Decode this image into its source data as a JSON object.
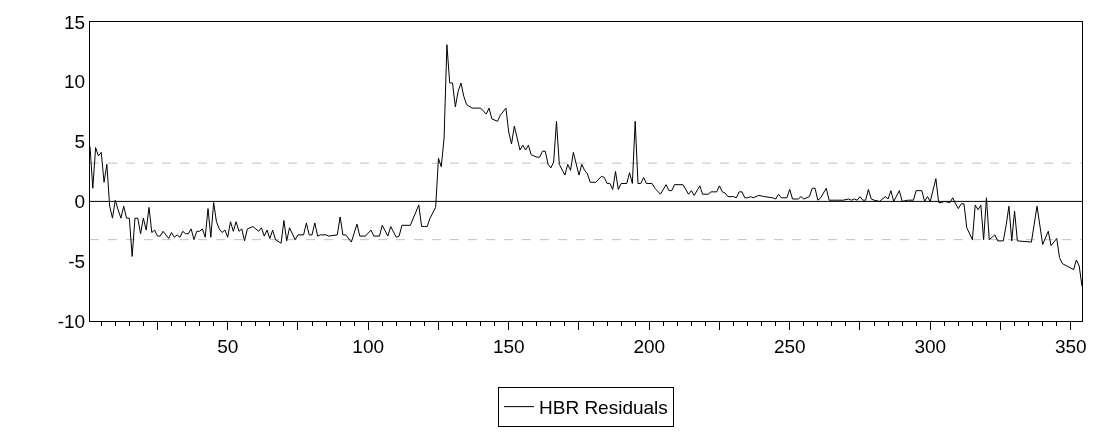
{
  "chart_data": {
    "type": "line",
    "xlim": [
      1,
      354
    ],
    "xticks": [
      {
        "value": 25,
        "label": null
      },
      50,
      {
        "value": 75,
        "label": null
      },
      100,
      {
        "value": 125,
        "label": null
      },
      150,
      {
        "value": 175,
        "label": null
      },
      200,
      {
        "value": 225,
        "label": null
      },
      250,
      {
        "value": 275,
        "label": null
      },
      300,
      {
        "value": 325,
        "label": null
      },
      350
    ],
    "ylim": [
      -10,
      15
    ],
    "yticks": [
      -10,
      -5,
      0,
      5,
      10,
      15
    ],
    "grid": false,
    "legend": "bottom",
    "marker": "none",
    "line_style": "solid",
    "ref_lines": [
      {
        "axis": "y",
        "value": 0,
        "color": "#000000",
        "line_style": "solid"
      },
      {
        "axis": "y",
        "value": 3.2,
        "color": "#c0c0c0",
        "line_style": "dashed"
      },
      {
        "axis": "y",
        "value": -3.2,
        "color": "#c0c0c0",
        "line_style": "dashed"
      }
    ],
    "series": [
      {
        "name": "HBR Residuals",
        "color": "#000000",
        "x": [
          1,
          2,
          3,
          4,
          5,
          6,
          7,
          8,
          9,
          10,
          11,
          12,
          13,
          14,
          15,
          16,
          17,
          18,
          19,
          20,
          21,
          22,
          23,
          24,
          25,
          26,
          27,
          28,
          29,
          30,
          31,
          32,
          33,
          34,
          35,
          36,
          37,
          38,
          39,
          40,
          41,
          42,
          43,
          44,
          45,
          46,
          47,
          48,
          49,
          50,
          51,
          52,
          53,
          54,
          55,
          56,
          57,
          59,
          61,
          62,
          63,
          64,
          65,
          66,
          67,
          69,
          70,
          71,
          72,
          74,
          75,
          77,
          78,
          79,
          80,
          81,
          82,
          83,
          85,
          86,
          89,
          90,
          91,
          92,
          94,
          96,
          97,
          99,
          101,
          102,
          104,
          105,
          107,
          108,
          110,
          111,
          112,
          115,
          118,
          119,
          120,
          121,
          122,
          124,
          125,
          126,
          127,
          128,
          129,
          130,
          131,
          132,
          133,
          134,
          135,
          137,
          140,
          142,
          143,
          144,
          146,
          147,
          149,
          150,
          151,
          152,
          154,
          155,
          156,
          157,
          158,
          160,
          161,
          162,
          163,
          164,
          165,
          166,
          167,
          168,
          170,
          171,
          172,
          173,
          175,
          176,
          177,
          178,
          179,
          181,
          183,
          184,
          185,
          186,
          187,
          188,
          189,
          190,
          192,
          193,
          194,
          195,
          196,
          197,
          198,
          199,
          201,
          202,
          204,
          206,
          207,
          208,
          209,
          212,
          214,
          215,
          216,
          218,
          219,
          221,
          222,
          224,
          225,
          226,
          227,
          228,
          230,
          231,
          232,
          233,
          234,
          235,
          236,
          237,
          239,
          241,
          244,
          245,
          246,
          247,
          249,
          250,
          251,
          253,
          254,
          255,
          257,
          258,
          259,
          260,
          261,
          263,
          264,
          267,
          269,
          271,
          272,
          273,
          274,
          275,
          276,
          277,
          278,
          279,
          280,
          282,
          284,
          285,
          286,
          287,
          289,
          290,
          292,
          294,
          295,
          297,
          298,
          299,
          300,
          302,
          303,
          304,
          305,
          307,
          308,
          309,
          310,
          311,
          312,
          313,
          315,
          316,
          317,
          318,
          319,
          320,
          321,
          322,
          323,
          324,
          326,
          327,
          328,
          329,
          330,
          331,
          336,
          338,
          340,
          342,
          343,
          345,
          346,
          347,
          351,
          352,
          353,
          354
        ],
        "values": [
          4.6,
          1.1,
          4.5,
          3.8,
          4.1,
          1.6,
          3.1,
          -0.4,
          -1.4,
          0.1,
          -0.7,
          -1.4,
          -0.4,
          -1.4,
          -1.4,
          -4.6,
          -1.4,
          -1.4,
          -2.7,
          -1.4,
          -2.4,
          -0.5,
          -2.6,
          -2.4,
          -2.9,
          -2.9,
          -2.5,
          -2.8,
          -3.1,
          -2.6,
          -3.0,
          -2.8,
          -3.0,
          -2.5,
          -2.7,
          -2.7,
          -2.3,
          -3.2,
          -2.5,
          -2.5,
          -2.3,
          -3.0,
          -0.6,
          -3.0,
          -0.1,
          -1.7,
          -2.3,
          -2.6,
          -2.4,
          -3.0,
          -1.7,
          -2.5,
          -1.7,
          -2.5,
          -2.3,
          -3.3,
          -2.3,
          -2.1,
          -2.5,
          -2.2,
          -2.9,
          -2.4,
          -3.1,
          -2.4,
          -3.2,
          -3.5,
          -1.6,
          -3.3,
          -2.2,
          -3.2,
          -2.8,
          -2.8,
          -1.8,
          -2.8,
          -2.8,
          -1.8,
          -2.9,
          -2.8,
          -2.8,
          -2.9,
          -2.8,
          -1.3,
          -2.8,
          -2.8,
          -3.4,
          -1.9,
          -2.9,
          -2.9,
          -2.4,
          -2.9,
          -2.9,
          -2.0,
          -2.9,
          -2.1,
          -3.0,
          -2.9,
          -2.0,
          -2.0,
          -0.3,
          -2.1,
          -2.1,
          -2.1,
          -1.4,
          -0.5,
          3.6,
          2.9,
          5.3,
          13.1,
          9.9,
          9.9,
          7.9,
          9.2,
          9.9,
          8.8,
          8.1,
          7.8,
          7.8,
          7.3,
          7.8,
          6.9,
          6.7,
          7.2,
          7.8,
          5.8,
          4.8,
          6.3,
          4.3,
          4.7,
          4.3,
          4.7,
          3.9,
          3.7,
          3.7,
          4.2,
          4.2,
          3.1,
          2.8,
          3.3,
          6.7,
          3.1,
          2.2,
          3.1,
          2.6,
          4.1,
          2.2,
          3.1,
          2.6,
          2.3,
          1.6,
          1.6,
          2.1,
          2.0,
          1.5,
          1.5,
          1.0,
          2.5,
          1.0,
          1.5,
          1.5,
          2.4,
          1.5,
          6.7,
          1.5,
          1.5,
          2.0,
          1.5,
          1.5,
          1.1,
          0.6,
          1.4,
          0.9,
          0.9,
          1.4,
          1.4,
          0.6,
          0.9,
          0.5,
          1.3,
          0.6,
          0.6,
          0.8,
          0.8,
          1.3,
          0.8,
          0.7,
          0.4,
          0.4,
          0.3,
          0.8,
          0.8,
          0.3,
          0.3,
          0.4,
          0.3,
          0.5,
          0.4,
          0.3,
          0.2,
          0.6,
          0.3,
          0.3,
          1.0,
          0.2,
          0.2,
          0.4,
          0.2,
          0.4,
          1.1,
          1.1,
          0.1,
          0.3,
          1.1,
          0.1,
          0.1,
          0.1,
          0.2,
          0.1,
          0.2,
          0.1,
          0.4,
          0.1,
          0.1,
          1.0,
          0.2,
          0.1,
          0.0,
          0.4,
          0.2,
          0.9,
          0.0,
          0.9,
          0.0,
          0.1,
          0.1,
          0.9,
          0.9,
          0.0,
          0.4,
          0.0,
          1.9,
          -0.1,
          -0.1,
          0.0,
          -0.1,
          0.3,
          -0.2,
          -0.6,
          -0.2,
          -0.2,
          -2.2,
          -3.2,
          -0.3,
          -0.7,
          -0.3,
          -3.2,
          0.3,
          -3.2,
          -3.0,
          -2.8,
          -3.3,
          -3.3,
          -2.0,
          -0.4,
          -3.3,
          -0.8,
          -3.3,
          -3.4,
          -0.4,
          -3.6,
          -2.5,
          -3.7,
          -3.1,
          -4.7,
          -5.2,
          -5.7,
          -4.9,
          -5.4,
          -7.1
        ]
      }
    ]
  }
}
